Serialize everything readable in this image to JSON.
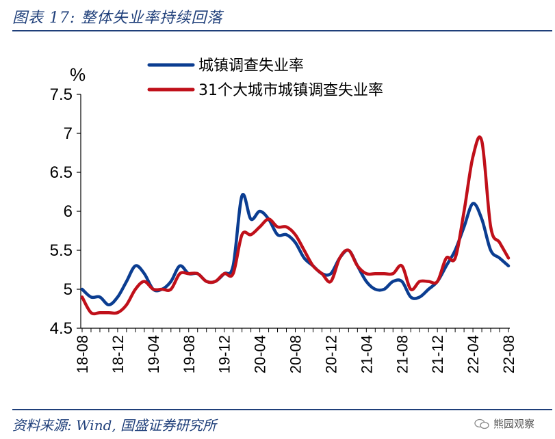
{
  "header": {
    "title": "图表 17:  整体失业率持续回落"
  },
  "footer": {
    "source": "资料来源:  Wind,  国盛证券研究所",
    "watermark": "熊园观察"
  },
  "chart_data": {
    "type": "line",
    "title": "图表 17:  整体失业率持续回落",
    "ylabel": "%",
    "ylim": [
      4.5,
      7.5
    ],
    "yticks": [
      "4.5",
      "5",
      "5.5",
      "6",
      "6.5",
      "7",
      "7.5"
    ],
    "x": [
      "18-08",
      "18-09",
      "18-10",
      "18-11",
      "18-12",
      "19-01",
      "19-02",
      "19-03",
      "19-04",
      "19-05",
      "19-06",
      "19-07",
      "19-08",
      "19-09",
      "19-10",
      "19-11",
      "19-12",
      "20-01",
      "20-02",
      "20-03",
      "20-04",
      "20-05",
      "20-06",
      "20-07",
      "20-08",
      "20-09",
      "20-10",
      "20-11",
      "20-12",
      "21-01",
      "21-02",
      "21-03",
      "21-04",
      "21-05",
      "21-06",
      "21-07",
      "21-08",
      "21-09",
      "21-10",
      "21-11",
      "21-12",
      "22-01",
      "22-02",
      "22-03",
      "22-04",
      "22-05",
      "22-06",
      "22-07",
      "22-08"
    ],
    "xticks": [
      "18-08",
      "18-12",
      "19-04",
      "19-08",
      "19-12",
      "20-04",
      "20-08",
      "20-12",
      "21-04",
      "21-08",
      "21-12",
      "22-04",
      "22-08"
    ],
    "legend_position": "top-center",
    "series": [
      {
        "name": "城镇调查失业率",
        "color": "#0b3d91",
        "values": [
          5.0,
          4.9,
          4.9,
          4.8,
          4.9,
          5.1,
          5.3,
          5.2,
          5.0,
          5.0,
          5.1,
          5.3,
          5.2,
          5.2,
          5.1,
          5.1,
          5.2,
          5.3,
          6.2,
          5.9,
          6.0,
          5.9,
          5.7,
          5.7,
          5.6,
          5.4,
          5.3,
          5.2,
          5.2,
          5.4,
          5.5,
          5.3,
          5.1,
          5.0,
          5.0,
          5.1,
          5.1,
          4.9,
          4.9,
          5.0,
          5.1,
          5.3,
          5.5,
          5.8,
          6.1,
          5.9,
          5.5,
          5.4,
          5.3
        ]
      },
      {
        "name": "31个大城市城镇调查失业率",
        "color": "#c0101a",
        "values": [
          4.9,
          4.7,
          4.7,
          4.7,
          4.7,
          4.8,
          5.0,
          5.1,
          5.0,
          5.0,
          5.0,
          5.2,
          5.2,
          5.2,
          5.1,
          5.1,
          5.2,
          5.2,
          5.7,
          5.7,
          5.8,
          5.9,
          5.8,
          5.8,
          5.7,
          5.5,
          5.3,
          5.2,
          5.1,
          5.4,
          5.5,
          5.3,
          5.2,
          5.2,
          5.2,
          5.2,
          5.3,
          5.0,
          5.1,
          5.1,
          5.1,
          5.4,
          5.4,
          6.0,
          6.7,
          6.9,
          5.8,
          5.6,
          5.4
        ]
      }
    ]
  }
}
